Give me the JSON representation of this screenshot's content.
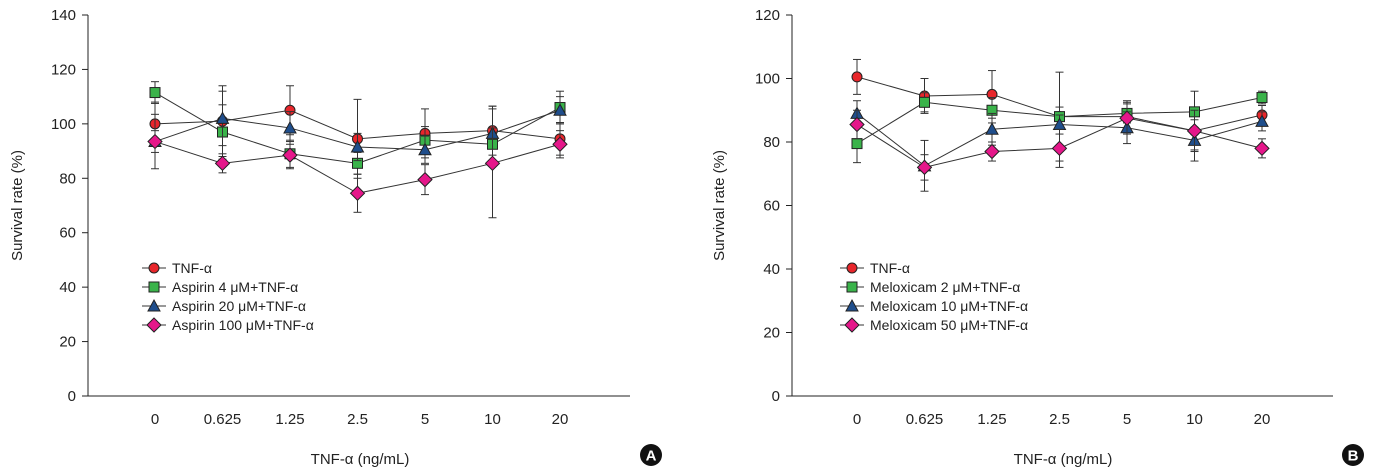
{
  "chart_data": [
    {
      "type": "line",
      "panel_label": "A",
      "xlabel": "TNF-α (ng/mL)",
      "ylabel": "Survival rate (%)",
      "ylim": [
        0,
        140
      ],
      "yticks": [
        "0",
        "20",
        "40",
        "60",
        "80",
        "100",
        "120",
        "140"
      ],
      "categories": [
        "0",
        "0.625",
        "1.25",
        "2.5",
        "5",
        "10",
        "20"
      ],
      "legend_position": "lower-left",
      "grid": false,
      "series": [
        {
          "name": "TNF-α",
          "marker": "circle",
          "color": "#e8262b",
          "values": [
            100,
            101,
            105,
            94.5,
            96.5,
            97.5,
            94.5
          ],
          "errors": [
            8,
            13,
            9,
            14.5,
            9,
            9,
            6
          ]
        },
        {
          "name": "Aspirin 4 μM+TNF-α",
          "marker": "square",
          "color": "#3ab34a",
          "values": [
            111.5,
            97,
            89,
            85.5,
            94,
            92.5,
            106
          ],
          "errors": [
            4,
            10,
            5,
            4,
            5,
            6,
            6
          ]
        },
        {
          "name": "Aspirin 20 μM+TNF-α",
          "marker": "triangle",
          "color": "#1f4e8c",
          "values": [
            93.5,
            102,
            98.5,
            91.5,
            90.5,
            96.5,
            105
          ],
          "errors": [
            10,
            10,
            6,
            5,
            5,
            10,
            5
          ]
        },
        {
          "name": "Aspirin 100 μM+TNF-α",
          "marker": "diamond",
          "color": "#e5178a",
          "values": [
            93.5,
            85.5,
            88.5,
            74.5,
            79.5,
            85.5,
            92.5
          ],
          "errors": [
            4,
            3.5,
            5,
            7,
            5.5,
            20,
            5
          ]
        }
      ]
    },
    {
      "type": "line",
      "panel_label": "B",
      "xlabel": "TNF-α (ng/mL)",
      "ylabel": "Survival rate (%)",
      "ylim": [
        0,
        120
      ],
      "yticks": [
        "0",
        "20",
        "40",
        "60",
        "80",
        "100",
        "120"
      ],
      "categories": [
        "0",
        "0.625",
        "1.25",
        "2.5",
        "5",
        "10",
        "20"
      ],
      "legend_position": "lower-left",
      "grid": false,
      "series": [
        {
          "name": "TNF-α",
          "marker": "circle",
          "color": "#e8262b",
          "values": [
            100.5,
            94.5,
            95,
            88,
            88,
            83.5,
            88.5
          ],
          "errors": [
            5.5,
            5.5,
            7.5,
            14,
            5,
            6,
            3
          ]
        },
        {
          "name": "Meloxicam 2 μM+TNF-α",
          "marker": "square",
          "color": "#3ab34a",
          "values": [
            79.5,
            92.5,
            90,
            88,
            89,
            89.5,
            94
          ],
          "errors": [
            6,
            3,
            4,
            3,
            3,
            6.5,
            2
          ]
        },
        {
          "name": "Meloxicam 10 μM+TNF-α",
          "marker": "triangle",
          "color": "#1f4e8c",
          "values": [
            89,
            72.5,
            84,
            85.5,
            84.5,
            80.5,
            86.5
          ],
          "errors": [
            4,
            8,
            5,
            3,
            5,
            6.5,
            3
          ]
        },
        {
          "name": "Meloxicam 50 μM+TNF-α",
          "marker": "diamond",
          "color": "#e5178a",
          "values": [
            85.5,
            72,
            77,
            78,
            87.5,
            83.5,
            78
          ],
          "errors": [
            4.5,
            4,
            3,
            6,
            5,
            6.5,
            3
          ]
        }
      ]
    }
  ]
}
